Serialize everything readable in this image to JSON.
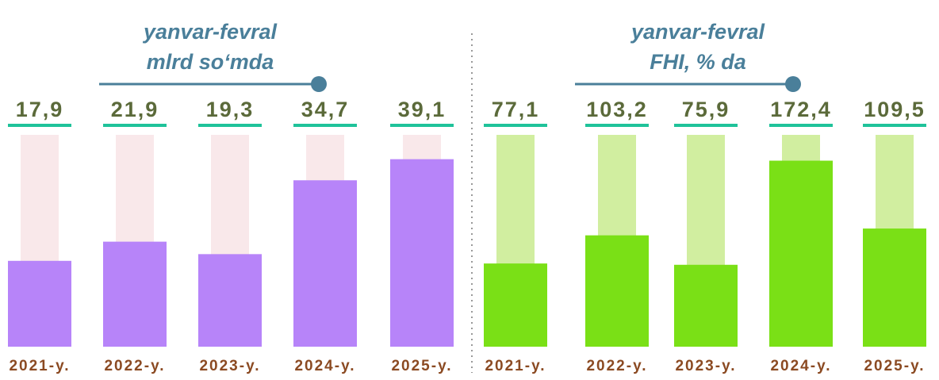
{
  "chart_data": [
    {
      "type": "bar",
      "title": "yanvar-fevral",
      "subtitle": "mlrd so‘mda",
      "categories": [
        "2021-y.",
        "2022-y.",
        "2023-y.",
        "2024-y.",
        "2025-y."
      ],
      "values": [
        17.9,
        21.9,
        19.3,
        34.7,
        39.1
      ],
      "value_labels": [
        "17,9",
        "21,9",
        "19,3",
        "34,7",
        "39,1"
      ],
      "color": "#b784f9",
      "ylim": [
        0,
        45
      ]
    },
    {
      "type": "bar",
      "title": "yanvar-fevral",
      "subtitle": "FHI, % da",
      "categories": [
        "2021-y.",
        "2022-y.",
        "2023-y.",
        "2024-y.",
        "2025-y."
      ],
      "values": [
        77.1,
        103.2,
        75.9,
        172.4,
        109.5
      ],
      "value_labels": [
        "77,1",
        "103,2",
        "75,9",
        "172,4",
        "109,5"
      ],
      "color": "#7ae016",
      "ylim": [
        0,
        200
      ]
    }
  ]
}
